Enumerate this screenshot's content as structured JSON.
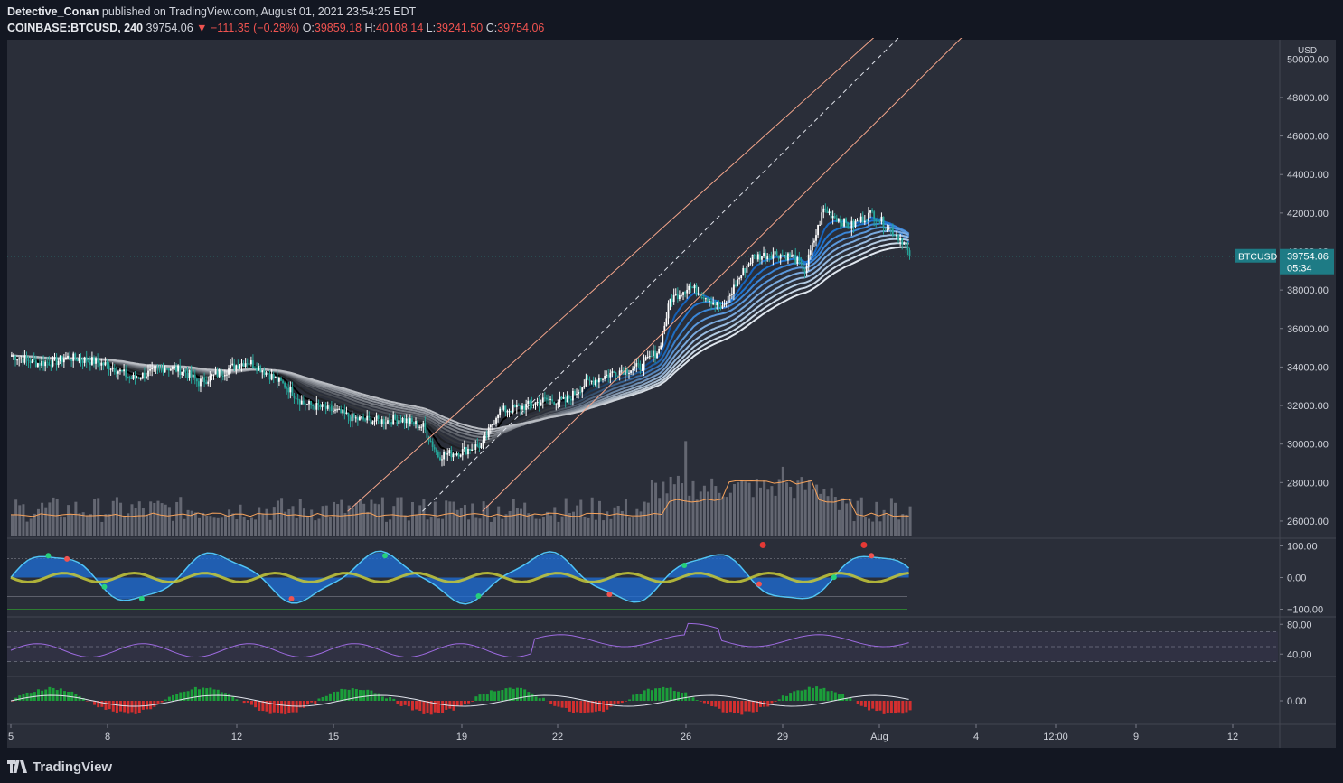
{
  "header": {
    "author": "Detective_Conan",
    "published": "published on TradingView.com, August 01, 2021 23:54:25 EDT",
    "symbol": "COINBASE:BTCUSD, 240",
    "price": "39754.06",
    "arrow": "▼",
    "change": "−111.35 (−0.28%)",
    "o_label": "O:",
    "o": "39859.18",
    "h_label": "H:",
    "h": "40108.14",
    "l_label": "L:",
    "l": "39241.50",
    "c_label": "C:",
    "c": "39754.06"
  },
  "footer": {
    "brand": "TradingView",
    "logo_icon": "tradingview-logo-icon"
  },
  "colors": {
    "background": "#131722",
    "pane": "#2a2e39",
    "up": "#ffffff",
    "down": "#26a69a",
    "channel": "#f4a58a",
    "label_bg": "#1e7b85"
  },
  "chart_data": {
    "type": "candlestick",
    "symbol": "BTCUSD",
    "currency": "USD",
    "timeframe": "240",
    "y_ticks": [
      "48000.00",
      "46000.00",
      "44000.00",
      "42000.00",
      "38000.00",
      "36000.00",
      "34000.00",
      "32000.00",
      "30000.00",
      "28000.00",
      "26000.00"
    ],
    "y_partial": [
      "50000.00",
      "40000.00"
    ],
    "ylim": [
      25200,
      51000
    ],
    "x_ticks": [
      "5",
      "8",
      "12",
      "15",
      "19",
      "22",
      "26",
      "29",
      "Aug",
      "4",
      "12:00",
      "9",
      "12"
    ],
    "last_price_label": "BTCUSD",
    "last_price": "39754.06",
    "countdown": "05:34",
    "price_path": [
      [
        0,
        34600
      ],
      [
        14,
        34200
      ],
      [
        24,
        34300
      ],
      [
        30,
        34500
      ],
      [
        44,
        34300
      ],
      [
        54,
        34000
      ],
      [
        64,
        33400
      ],
      [
        74,
        33700
      ],
      [
        82,
        34000
      ],
      [
        92,
        33800
      ],
      [
        100,
        33200
      ],
      [
        114,
        33800
      ],
      [
        120,
        34100
      ],
      [
        126,
        34300
      ],
      [
        132,
        34000
      ],
      [
        148,
        32900
      ],
      [
        156,
        32100
      ],
      [
        170,
        31800
      ],
      [
        184,
        31300
      ],
      [
        198,
        31200
      ],
      [
        208,
        31300
      ],
      [
        220,
        30900
      ],
      [
        228,
        29400
      ],
      [
        240,
        29600
      ],
      [
        252,
        30000
      ],
      [
        260,
        31700
      ],
      [
        272,
        31900
      ],
      [
        286,
        32300
      ],
      [
        296,
        32200
      ],
      [
        306,
        33100
      ],
      [
        316,
        33500
      ],
      [
        324,
        33800
      ],
      [
        336,
        34000
      ],
      [
        346,
        34900
      ],
      [
        352,
        37500
      ],
      [
        362,
        38200
      ],
      [
        372,
        37600
      ],
      [
        380,
        37000
      ],
      [
        388,
        38500
      ],
      [
        396,
        39700
      ],
      [
        408,
        39900
      ],
      [
        418,
        39700
      ],
      [
        424,
        39000
      ],
      [
        434,
        42200
      ],
      [
        448,
        41300
      ],
      [
        460,
        42000
      ],
      [
        476,
        40600
      ],
      [
        480,
        39754
      ]
    ],
    "channel": {
      "upper": [
        [
          180,
          26500
        ],
        [
          500,
          54500
        ]
      ],
      "mid": [
        [
          220,
          26500
        ],
        [
          520,
          55500
        ]
      ],
      "lower": [
        [
          252,
          26500
        ],
        [
          580,
          58000
        ]
      ]
    },
    "rsi": {
      "ticks": [
        "80.00",
        "40.00"
      ],
      "bands": [
        70,
        30,
        50
      ]
    },
    "wavetrend": {
      "ticks": [
        "100.00",
        "0.00",
        "−100.00"
      ]
    },
    "macd": {
      "ticks": [
        "0.00"
      ]
    }
  }
}
